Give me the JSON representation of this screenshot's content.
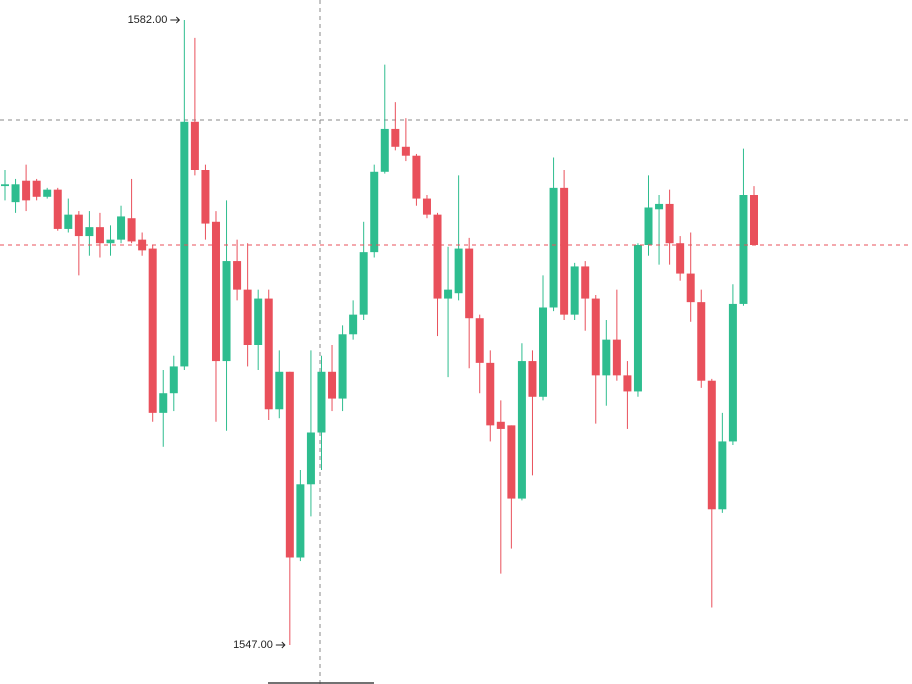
{
  "chart_data": {
    "type": "candlestick",
    "up_color": "#2ebd8f",
    "down_color": "#e9505b",
    "open": [
      1572.7,
      1571.8,
      1573.0,
      1573.0,
      1572.1,
      1572.5,
      1570.3,
      1571.1,
      1569.9,
      1570.4,
      1569.5,
      1569.7,
      1570.9,
      1569.7,
      1569.2,
      1560.0,
      1561.1,
      1562.6,
      1576.3,
      1573.6,
      1570.7,
      1562.9,
      1568.5,
      1566.9,
      1563.8,
      1566.4,
      1560.2,
      1562.3,
      1551.9,
      1556.0,
      1558.9,
      1562.3,
      1560.8,
      1564.4,
      1565.5,
      1569.0,
      1573.5,
      1575.9,
      1574.9,
      1574.4,
      1572.0,
      1571.1,
      1566.4,
      1566.7,
      1569.2,
      1565.3,
      1562.8,
      1559.5,
      1559.3,
      1555.2,
      1562.9,
      1560.9,
      1565.9,
      1572.6,
      1565.5,
      1568.2,
      1566.4,
      1562.1,
      1564.1,
      1562.1,
      1561.2,
      1569.4,
      1571.4,
      1571.7,
      1569.5,
      1567.8,
      1566.2,
      1561.8,
      1554.6,
      1558.4,
      1566.1,
      1572.2
    ],
    "high": [
      1573.6,
      1573.1,
      1573.9,
      1573.1,
      1572.6,
      1572.6,
      1572.0,
      1571.3,
      1571.3,
      1571.2,
      1570.5,
      1571.6,
      1573.1,
      1570.1,
      1569.4,
      1562.4,
      1563.2,
      1582.0,
      1581.0,
      1573.9,
      1571.3,
      1571.9,
      1569.7,
      1569.5,
      1566.9,
      1566.9,
      1563.5,
      1562.3,
      1556.8,
      1563.5,
      1563.2,
      1563.8,
      1564.9,
      1566.3,
      1570.7,
      1573.9,
      1579.5,
      1577.4,
      1576.5,
      1574.5,
      1572.2,
      1571.2,
      1569.3,
      1573.3,
      1569.8,
      1565.5,
      1563.5,
      1560.7,
      1559.3,
      1563.9,
      1563.5,
      1567.7,
      1574.3,
      1573.6,
      1568.4,
      1568.5,
      1566.6,
      1565.2,
      1566.9,
      1562.9,
      1569.5,
      1573.3,
      1572.2,
      1572.5,
      1569.9,
      1570.1,
      1566.9,
      1561.9,
      1560.0,
      1567.2,
      1574.8,
      1572.7
    ],
    "low": [
      1571.9,
      1571.2,
      1571.3,
      1571.9,
      1572.0,
      1570.2,
      1570.1,
      1567.7,
      1568.8,
      1568.7,
      1568.8,
      1569.5,
      1569.5,
      1568.8,
      1559.5,
      1558.1,
      1560.1,
      1562.4,
      1573.3,
      1569.7,
      1559.5,
      1559.0,
      1566.3,
      1562.6,
      1562.4,
      1559.6,
      1559.7,
      1547.0,
      1551.7,
      1554.2,
      1556.8,
      1560.1,
      1560.1,
      1564.1,
      1565.2,
      1568.7,
      1573.4,
      1574.7,
      1574.1,
      1571.6,
      1570.9,
      1564.3,
      1562.0,
      1566.3,
      1562.5,
      1561.1,
      1558.4,
      1551.0,
      1552.4,
      1555.1,
      1556.5,
      1560.7,
      1565.7,
      1565.2,
      1565.2,
      1564.6,
      1559.4,
      1560.4,
      1561.8,
      1559.1,
      1560.9,
      1568.8,
      1568.3,
      1568.3,
      1567.4,
      1565.1,
      1561.4,
      1549.1,
      1554.4,
      1558.2,
      1566.0,
      1569.4
    ],
    "close": [
      1572.8,
      1572.8,
      1571.9,
      1572.1,
      1572.5,
      1570.3,
      1571.1,
      1569.9,
      1570.4,
      1569.5,
      1569.7,
      1571.0,
      1569.6,
      1569.1,
      1560.0,
      1561.1,
      1562.6,
      1576.3,
      1573.6,
      1570.6,
      1562.9,
      1568.5,
      1566.9,
      1563.8,
      1566.4,
      1560.2,
      1562.3,
      1551.9,
      1556.0,
      1558.9,
      1562.3,
      1560.8,
      1564.4,
      1565.5,
      1569.0,
      1573.5,
      1575.9,
      1574.9,
      1574.4,
      1572.0,
      1571.1,
      1566.4,
      1566.9,
      1569.2,
      1565.3,
      1562.8,
      1559.3,
      1559.1,
      1555.2,
      1562.9,
      1560.9,
      1565.9,
      1572.6,
      1565.5,
      1568.2,
      1566.4,
      1562.1,
      1564.1,
      1562.1,
      1561.2,
      1569.4,
      1571.5,
      1571.7,
      1569.5,
      1567.8,
      1566.2,
      1561.8,
      1554.6,
      1558.4,
      1566.1,
      1572.2,
      1569.4
    ],
    "annotations": [
      {
        "value": 1582,
        "label": "1582.00"
      },
      {
        "value": 1547,
        "label": "1547.00"
      }
    ]
  }
}
